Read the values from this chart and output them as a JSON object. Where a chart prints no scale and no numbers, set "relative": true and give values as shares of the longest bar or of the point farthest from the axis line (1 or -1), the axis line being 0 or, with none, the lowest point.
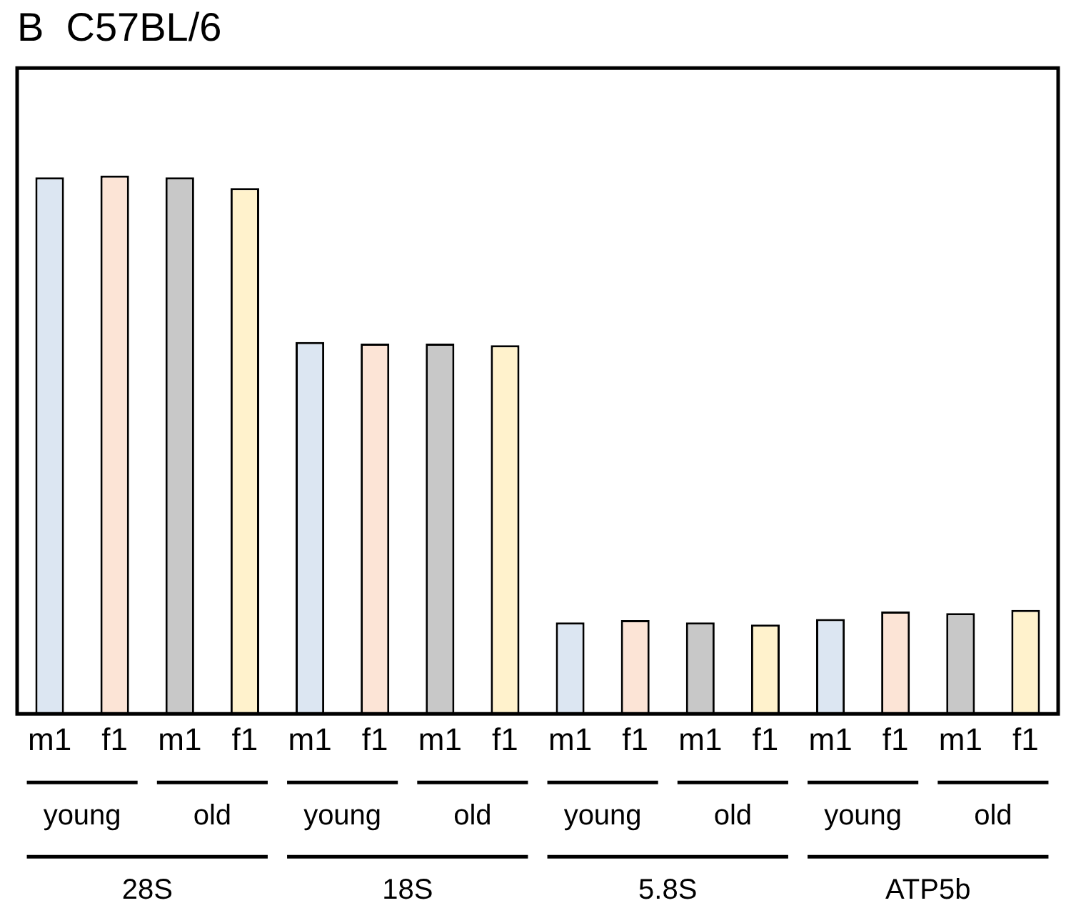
{
  "chart_data": {
    "type": "bar",
    "title": "B  C57BL/6",
    "relative": true,
    "categories": [
      "m1",
      "f1",
      "m1",
      "f1",
      "m1",
      "f1",
      "m1",
      "f1",
      "m1",
      "f1",
      "m1",
      "f1",
      "m1",
      "f1",
      "m1",
      "f1"
    ],
    "values": [
      0.997,
      1,
      0.997,
      0.977,
      0.691,
      0.688,
      0.688,
      0.685,
      0.17,
      0.174,
      0.17,
      0.166,
      0.176,
      0.19,
      0.187,
      0.193
    ],
    "colors": [
      "#dce6f2",
      "#fce4d6",
      "#c8c8c8",
      "#fff2cc",
      "#dce6f2",
      "#fce4d6",
      "#c8c8c8",
      "#fff2cc",
      "#dce6f2",
      "#fce4d6",
      "#c8c8c8",
      "#fff2cc",
      "#dce6f2",
      "#fce4d6",
      "#c8c8c8",
      "#fff2cc"
    ],
    "annotations": [
      "young",
      "old",
      "young",
      "old",
      "young",
      "old",
      "young",
      "old",
      "28S",
      "18S",
      "5.8S",
      "ATP5b"
    ],
    "grid": false,
    "legend": false
  }
}
